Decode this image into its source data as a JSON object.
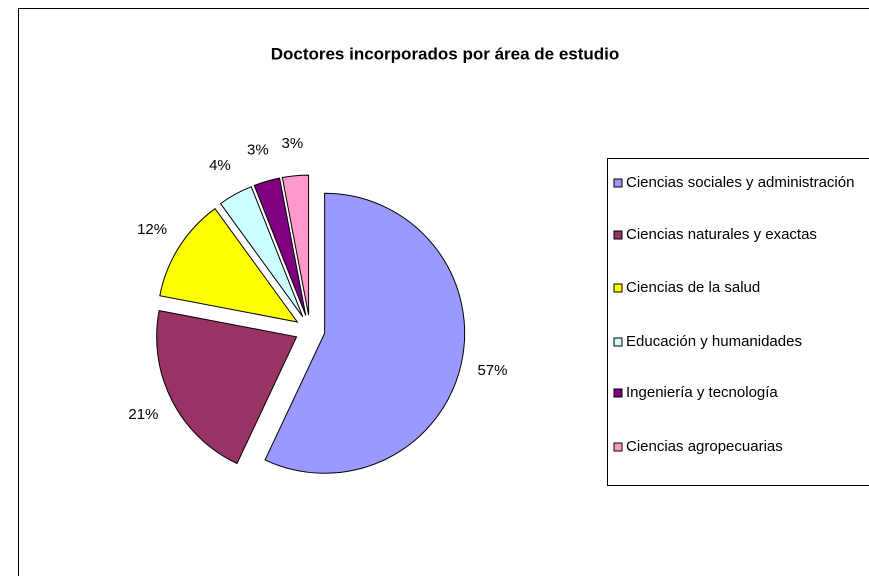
{
  "chart_data": {
    "type": "pie",
    "title": "Doctores incorporados por área de estudio",
    "categories": [
      "Ciencias sociales y administración",
      "Ciencias naturales y exactas",
      "Ciencias de la salud",
      "Educación y humanidades",
      "Ingeniería y tecnología",
      "Ciencias agropecuarias"
    ],
    "values": [
      57,
      21,
      12,
      4,
      3,
      3
    ],
    "value_labels": [
      "57%",
      "21%",
      "12%",
      "4%",
      "3%",
      "3%"
    ],
    "colors": [
      "#9999ff",
      "#993366",
      "#ffff00",
      "#ccffff",
      "#800080",
      "#ff99cc"
    ],
    "legend": "right"
  }
}
